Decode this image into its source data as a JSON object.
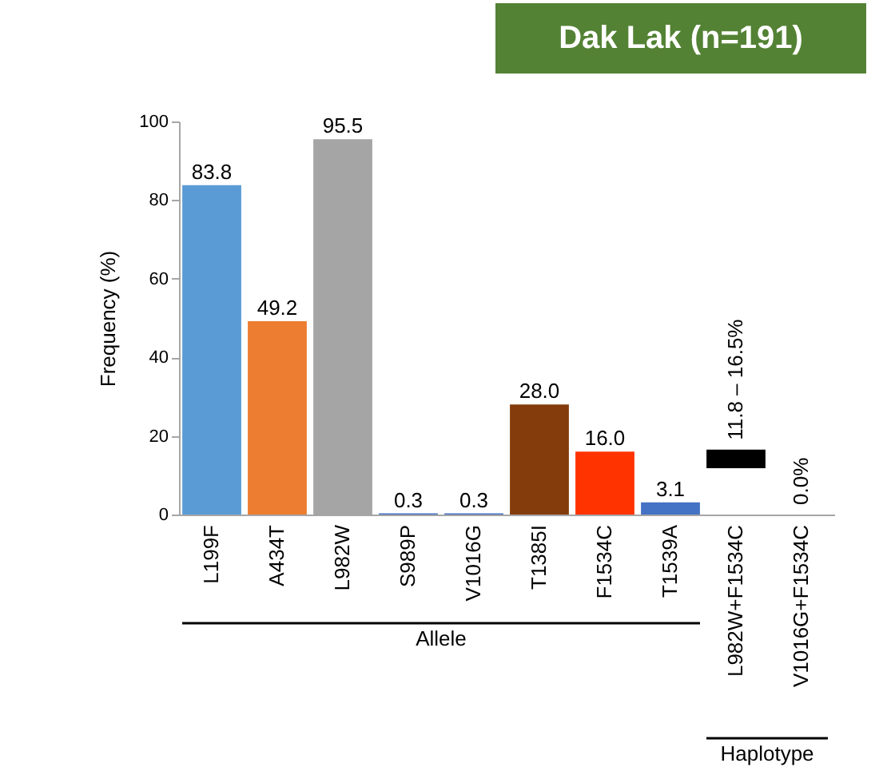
{
  "chart_data": {
    "type": "bar",
    "title": "Dak Lak (n=191)",
    "ylabel": "Frequency (%)",
    "categories": [
      "L199F",
      "A434T",
      "L982W",
      "S989P",
      "V1016G",
      "T1385I",
      "F1534C",
      "T1539A",
      "L982W+F1534C",
      "V1016G+F1534C"
    ],
    "values": [
      83.8,
      49.2,
      95.5,
      0.3,
      0.3,
      28.0,
      16.0,
      3.1,
      4.7,
      0.0
    ],
    "base": [
      null,
      null,
      null,
      null,
      null,
      null,
      null,
      null,
      11.8,
      null
    ],
    "colors": [
      "#5b9bd5",
      "#ed7d31",
      "#a5a5a5",
      "#4472c4",
      "#4472c4",
      "#843c0c",
      "#ff3300",
      "#4472c4",
      "#000000",
      "#4472c4"
    ],
    "value_labels": [
      "83.8",
      "49.2",
      "95.5",
      "0.3",
      "0.3",
      "28.0",
      "16.0",
      "3.1",
      null,
      null
    ],
    "annotations": [
      {
        "text": "11.8 – 16.5%",
        "x": "L982W+F1534C",
        "y": 16.5
      },
      {
        "text": "0.0%",
        "x": "V1016G+F1534C",
        "y": 0.0
      },
      "Allele",
      "Haplotype"
    ],
    "ylim": [
      0,
      100
    ],
    "yticks": [
      0,
      20,
      40,
      60,
      80,
      100
    ],
    "grid": false
  }
}
